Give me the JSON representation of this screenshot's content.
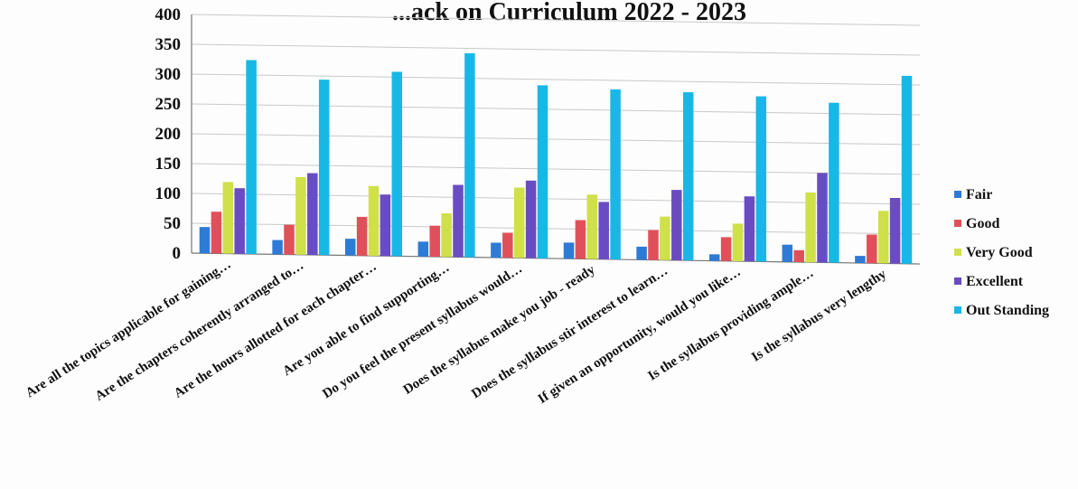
{
  "chart_data": {
    "type": "bar",
    "title": "...ack on Curriculum 2022 - 2023",
    "ylim": [
      0,
      400
    ],
    "yticks": [
      "0",
      "50",
      "100",
      "150",
      "200",
      "250",
      "300",
      "350",
      "400"
    ],
    "grid": true,
    "legend_position": "right",
    "categories": [
      "Are all the topics applicable for gaining…",
      "Are the chapters coherently arranged to…",
      "Are the hours allotted for each chapter…",
      "Are you able to find supporting…",
      "Do you feel the present syllabus would…",
      "Does the syllabus make you job - ready",
      "Does the syllabus stir interest to learn…",
      "If given an opportunity, would you like…",
      "Is the syllabus providing ample…",
      "Is the syllabus very lengthy"
    ],
    "series": [
      {
        "name": "Fair",
        "color": "#2e7bd6",
        "values": [
          44,
          24,
          28,
          25,
          25,
          27,
          22,
          11,
          29,
          12
        ]
      },
      {
        "name": "Good",
        "color": "#e0505a",
        "values": [
          70,
          50,
          65,
          52,
          42,
          65,
          50,
          40,
          20,
          48
        ]
      },
      {
        "name": "Very Good",
        "color": "#cfe04a",
        "values": [
          120,
          130,
          117,
          73,
          118,
          108,
          73,
          63,
          117,
          88
        ]
      },
      {
        "name": "Excellent",
        "color": "#6a4cc2",
        "values": [
          110,
          137,
          103,
          121,
          130,
          96,
          118,
          109,
          150,
          110
        ]
      },
      {
        "name": "Out Standing",
        "color": "#18b8e6",
        "values": [
          325,
          294,
          309,
          342,
          290,
          285,
          282,
          277,
          268,
          315
        ]
      }
    ]
  }
}
